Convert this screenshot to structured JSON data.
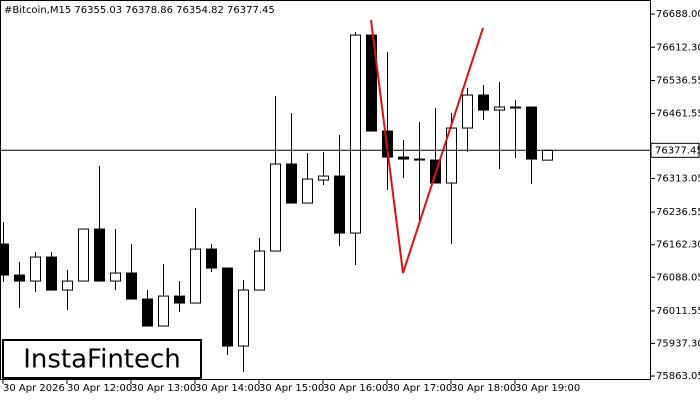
{
  "chart_data": {
    "type": "candlestick",
    "title": "#Bitcoin,M15  76355.03 76378.86 76354.82 76377.45",
    "logo": "InstaFintech",
    "up_color": "#ffffff",
    "down_color": "#000000",
    "line_color": "#000000",
    "categories": [
      "30 Apr 2026",
      null,
      null,
      null,
      "30 Apr 12:00",
      null,
      null,
      null,
      "30 Apr 13:00",
      null,
      null,
      null,
      "30 Apr 14:00",
      null,
      null,
      null,
      "30 Apr 15:00",
      null,
      null,
      null,
      "30 Apr 16:00",
      null,
      null,
      null,
      "30 Apr 17:00",
      null,
      null,
      null,
      "30 Apr 18:00",
      null,
      null,
      null,
      "30 Apr 19:00",
      null,
      null
    ],
    "open": [
      76163.8,
      76093.2,
      76079.5,
      76134.2,
      76059.0,
      76079.5,
      76198.0,
      76079.5,
      76097.8,
      76038.5,
      75977.0,
      76045.3,
      76029.4,
      76152.4,
      76109.1,
      75931.4,
      76059.0,
      76147.9,
      76346.2,
      76257.3,
      76309.7,
      76318.8,
      76188.9,
      76640.1,
      76421.4,
      76362.1,
      76357.5,
      76355.3,
      76302.9,
      76428.2,
      76503.4,
      76469.2,
      76476.1,
      76476.1,
      76355.03
    ],
    "high": [
      76214.0,
      76122.8,
      76145.6,
      76145.6,
      76104.6,
      76198.0,
      76341.6,
      76198.0,
      76163.8,
      76059.0,
      76118.3,
      76079.5,
      76245.9,
      76163.8,
      76109.1,
      76081.8,
      76177.5,
      76501.1,
      76462.4,
      76371.2,
      76373.5,
      76412.2,
      76647.0,
      76640.1,
      76601.4,
      76400.8,
      76441.9,
      76473.8,
      76462.4,
      76519.4,
      76526.2,
      76533.0,
      76492.0,
      76476.1,
      76378.86
    ],
    "low": [
      76077.2,
      76018.0,
      76054.4,
      76059.0,
      76013.4,
      76079.5,
      76079.5,
      76059.0,
      76038.5,
      75977.0,
      75977.0,
      76008.9,
      76029.4,
      76100.0,
      75910.9,
      75872.2,
      76059.0,
      76147.9,
      76257.3,
      76257.3,
      76298.3,
      76159.3,
      76116.0,
      76421.4,
      76286.9,
      76314.3,
      76218.5,
      76302.9,
      76163.8,
      76373.5,
      76446.4,
      76334.8,
      76359.8,
      76300.6,
      76354.82
    ],
    "close": [
      76093.2,
      76079.5,
      76134.2,
      76059.0,
      76079.5,
      76198.0,
      76079.5,
      76097.8,
      76038.5,
      75977.0,
      76045.3,
      76029.4,
      76152.4,
      76109.1,
      75931.4,
      76059.0,
      76147.9,
      76346.2,
      76257.3,
      76312.0,
      76318.8,
      76188.9,
      76640.1,
      76421.4,
      76362.1,
      76357.5,
      76355.3,
      76302.9,
      76428.2,
      76503.4,
      76469.2,
      76476.1,
      76473.8,
      76357.5,
      76377.45
    ],
    "last_price": 76377.45,
    "ylim": [
      75854,
      76720
    ],
    "yticks": [
      {
        "value": 76688,
        "label": "76688.00"
      },
      {
        "value": 76612.3,
        "label": "76612.30"
      },
      76536.55,
      76461.55,
      76313.05,
      76236.55,
      {
        "value": 76162.3,
        "label": "76162.30"
      },
      76088.05,
      76011.55,
      {
        "value": 75937.3,
        "label": "75937.30"
      },
      75863.05
    ]
  }
}
